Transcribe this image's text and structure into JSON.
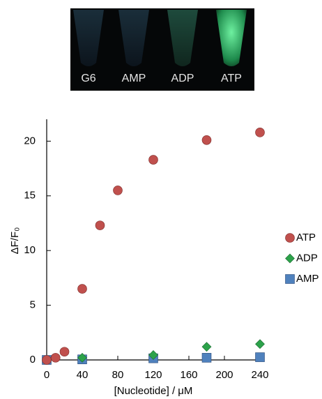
{
  "photo": {
    "labels": [
      "G6",
      "AMP",
      "ADP",
      "ATP"
    ]
  },
  "chart_data": {
    "type": "scatter",
    "xlabel": "[Nucleotide] / μM",
    "ylabel": "ΔF/F₀",
    "xlim": [
      0,
      240
    ],
    "ylim": [
      0,
      22
    ],
    "xticks": [
      0,
      40,
      80,
      120,
      160,
      200,
      240
    ],
    "yticks": [
      0,
      5,
      10,
      15,
      20
    ],
    "legend": "right",
    "series": [
      {
        "name": "ATP",
        "color": "#c0504d",
        "marker": "circle",
        "x": [
          0,
          10,
          20,
          40,
          60,
          80,
          120,
          180,
          240
        ],
        "values": [
          0,
          0.2,
          0.75,
          6.5,
          12.3,
          15.5,
          18.3,
          20.1,
          20.8
        ]
      },
      {
        "name": "ADP",
        "color": "#2ca24a",
        "marker": "diamond",
        "x": [
          0,
          40,
          120,
          180,
          240
        ],
        "values": [
          0,
          0.2,
          0.45,
          1.2,
          1.45
        ]
      },
      {
        "name": "AMP",
        "color": "#4f81bd",
        "marker": "square",
        "x": [
          0,
          40,
          120,
          180,
          240
        ],
        "values": [
          0,
          0.05,
          0.15,
          0.2,
          0.25
        ]
      }
    ]
  }
}
